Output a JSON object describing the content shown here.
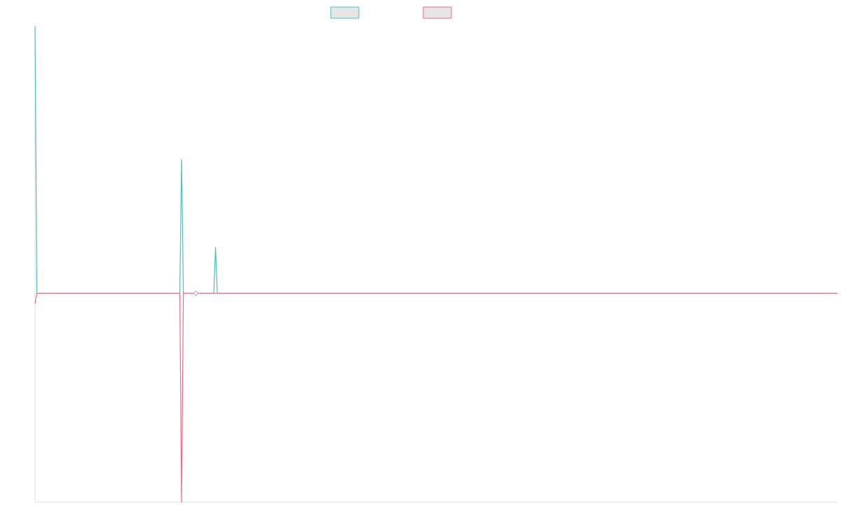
{
  "chart_data": {
    "type": "line",
    "title": "",
    "xlabel": "",
    "ylabel": "",
    "x_count": 450,
    "ylim": [
      -1,
      1.28
    ],
    "grid": false,
    "legend_position": "top-center",
    "series": [
      {
        "name": "",
        "color": "#4bc0c0",
        "fill": "#e6e6e6",
        "points": [
          [
            0,
            1.28
          ],
          [
            1,
            0
          ],
          [
            81,
            0
          ],
          [
            82,
            0.64
          ],
          [
            83,
            0
          ],
          [
            100,
            0
          ],
          [
            101,
            0.22
          ],
          [
            102,
            0
          ],
          [
            449,
            0
          ]
        ]
      },
      {
        "name": "",
        "color": "#ff6384",
        "fill": "#e6e6e6",
        "points": [
          [
            0,
            -0.05
          ],
          [
            1,
            0
          ],
          [
            81,
            0
          ],
          [
            82,
            -1
          ],
          [
            83,
            0
          ],
          [
            449,
            0
          ]
        ]
      }
    ],
    "markers": [
      {
        "series": 0,
        "x": 90,
        "y": 0,
        "shape": "diamond",
        "color": "#aaaaaa"
      }
    ]
  }
}
